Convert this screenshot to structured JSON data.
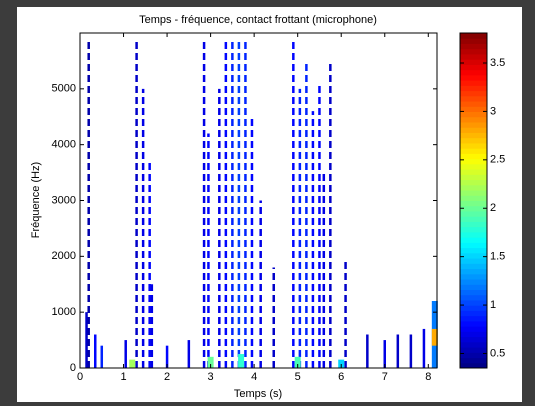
{
  "chart_data": {
    "type": "spectrogram",
    "title": "Temps - fréquence, contact frottant (microphone)",
    "x_label": "Temps (s)",
    "y_label": "Fréquence (Hz)",
    "x": [
      0.15,
      0.2,
      0.35,
      0.5,
      1.05,
      1.3,
      1.45,
      1.6,
      1.65,
      2.0,
      2.5,
      2.85,
      2.95,
      3.2,
      3.35,
      3.5,
      3.65,
      3.8,
      3.95,
      4.15,
      4.45,
      4.9,
      5.05,
      5.2,
      5.35,
      5.5,
      5.6,
      5.75,
      6.1,
      6.6,
      7.0,
      7.3,
      7.6,
      7.9,
      8.15,
      1.2,
      3.0,
      3.7,
      5.0,
      6.0,
      8.15
    ],
    "y_low": [
      0,
      0,
      0,
      0,
      0,
      0,
      0,
      0,
      0,
      0,
      0,
      0,
      0,
      0,
      0,
      0,
      0,
      0,
      0,
      0,
      0,
      0,
      0,
      0,
      0,
      0,
      0,
      0,
      0,
      0,
      0,
      0,
      0,
      0,
      0,
      0,
      0,
      0,
      0,
      0,
      400
    ],
    "y_high": [
      1000,
      5900,
      600,
      400,
      500,
      5900,
      5000,
      3700,
      1500,
      400,
      500,
      5900,
      4200,
      5000,
      5900,
      5900,
      5900,
      5900,
      4500,
      3000,
      1800,
      5900,
      5000,
      5500,
      4600,
      5100,
      3500,
      5500,
      1900,
      600,
      500,
      600,
      600,
      700,
      1200,
      150,
      200,
      250,
      200,
      150,
      700
    ],
    "values": [
      0.6,
      0.5,
      0.8,
      0.9,
      0.7,
      0.6,
      0.7,
      0.8,
      0.7,
      0.8,
      0.7,
      0.7,
      0.8,
      0.7,
      0.8,
      0.9,
      1.0,
      0.9,
      0.8,
      0.7,
      0.6,
      0.8,
      0.9,
      0.9,
      0.8,
      0.8,
      0.7,
      0.6,
      0.6,
      0.6,
      0.7,
      0.6,
      0.6,
      0.7,
      1.2,
      2.2,
      2.0,
      1.8,
      1.9,
      1.5,
      2.8
    ],
    "xlim": [
      0,
      8.2
    ],
    "xticks": [
      0,
      1,
      2,
      3,
      4,
      5,
      6,
      7,
      8
    ],
    "ylim": [
      0,
      6000
    ],
    "yticks": [
      0,
      1000,
      2000,
      3000,
      4000,
      5000
    ],
    "colorbar": {
      "lim": [
        0.35,
        3.81
      ],
      "ticks": [
        0.5,
        1,
        1.5,
        2,
        2.5,
        3,
        3.5
      ]
    }
  }
}
